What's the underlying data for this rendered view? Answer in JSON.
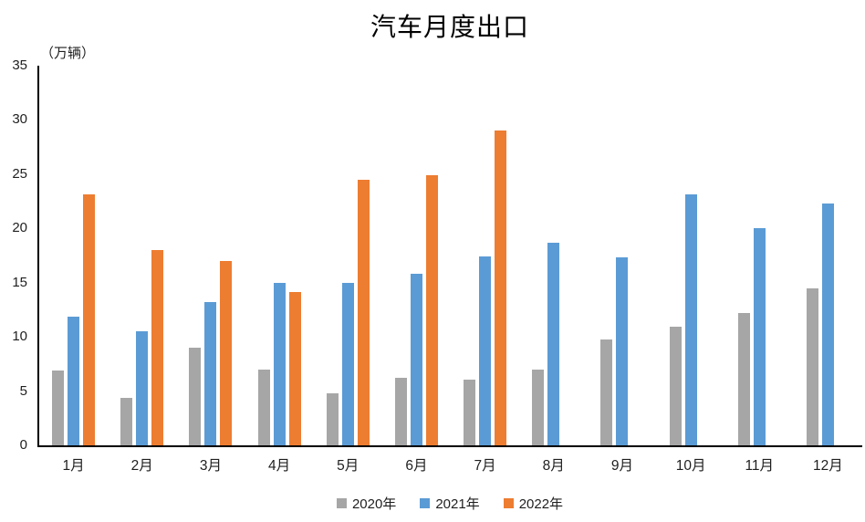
{
  "chart_data": {
    "type": "bar",
    "title": "汽车月度出口",
    "unit_label": "（万辆）",
    "categories": [
      "1月",
      "2月",
      "3月",
      "4月",
      "5月",
      "6月",
      "7月",
      "8月",
      "9月",
      "10月",
      "11月",
      "12月"
    ],
    "series": [
      {
        "name": "2020年",
        "color": "#A6A6A6",
        "values": [
          6.9,
          4.4,
          9.0,
          7.0,
          4.8,
          6.2,
          6.1,
          7.0,
          9.8,
          10.9,
          12.2,
          14.5
        ]
      },
      {
        "name": "2021年",
        "color": "#5B9BD5",
        "values": [
          11.9,
          10.5,
          13.2,
          15.0,
          15.0,
          15.8,
          17.4,
          18.7,
          17.3,
          23.1,
          20.0,
          22.3
        ]
      },
      {
        "name": "2022年",
        "color": "#ED7D31",
        "values": [
          23.1,
          18.0,
          17.0,
          14.1,
          24.5,
          24.9,
          29.0,
          null,
          null,
          null,
          null,
          null
        ]
      }
    ],
    "ylim": [
      0,
      35
    ],
    "yticks": [
      0,
      5,
      10,
      15,
      20,
      25,
      30,
      35
    ],
    "grid": false,
    "legend_position": "bottom",
    "axis_color": "#000000",
    "background_color": "#FFFFFF"
  }
}
